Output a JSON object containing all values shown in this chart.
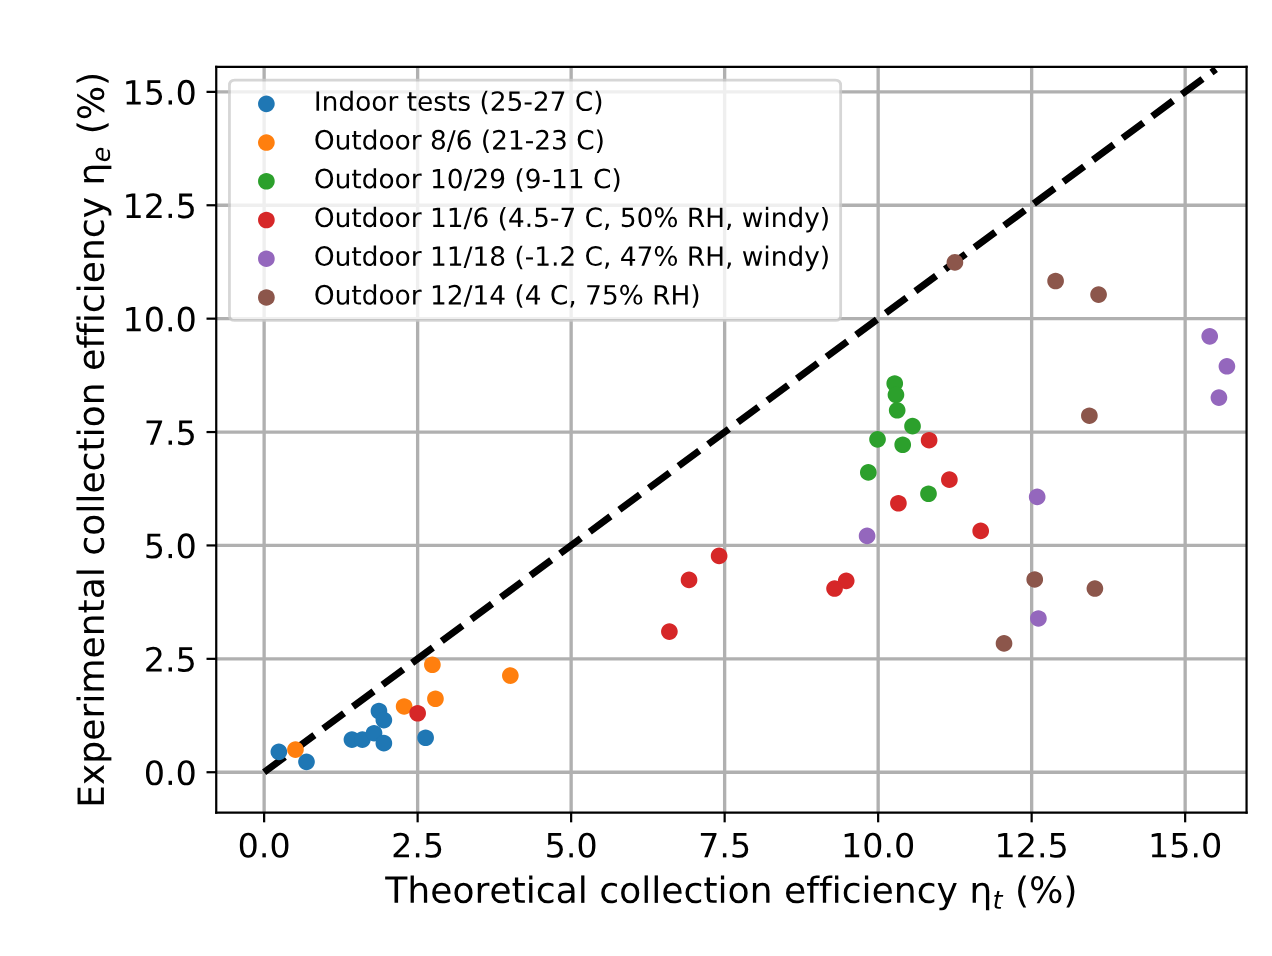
{
  "chart_data": {
    "type": "scatter",
    "xlabel": "Theoretical collection efficiency η$_{t}$ (%)",
    "ylabel": "Experimental collection efficiency η$_{e}$ (%)",
    "xlim": [
      -0.78,
      16.0
    ],
    "ylim": [
      -0.89,
      15.55
    ],
    "xticks": [
      {
        "value": 0,
        "label": "0.0"
      },
      {
        "value": 2.5,
        "label": "2.5"
      },
      {
        "value": 5,
        "label": "5.0"
      },
      {
        "value": 7.5,
        "label": "7.5"
      },
      {
        "value": 10,
        "label": "10.0"
      },
      {
        "value": 12.5,
        "label": "12.5"
      },
      {
        "value": 15,
        "label": "15.0"
      }
    ],
    "yticks": [
      {
        "value": 0,
        "label": "0.0"
      },
      {
        "value": 2.5,
        "label": "2.5"
      },
      {
        "value": 5,
        "label": "5.0"
      },
      {
        "value": 7.5,
        "label": "7.5"
      },
      {
        "value": 10,
        "label": "10.0"
      },
      {
        "value": 12.5,
        "label": "12.5"
      },
      {
        "value": 15,
        "label": "15.0"
      }
    ],
    "grid": true,
    "legend": "top left",
    "marker": "circle",
    "series": [
      {
        "name": "Indoor tests (25-27 C)",
        "color": "#1f77b4",
        "x": [
          0.24,
          0.69,
          1.43,
          1.6,
          1.79,
          1.87,
          1.95,
          1.95,
          2.63
        ],
        "values": [
          0.45,
          0.23,
          0.72,
          0.72,
          0.86,
          1.35,
          1.15,
          0.64,
          0.76
        ]
      },
      {
        "name": "Outdoor 8/6 (21-23 C)",
        "color": "#ff7f0e",
        "x": [
          0.51,
          2.28,
          2.74,
          2.79,
          4.01
        ],
        "values": [
          0.5,
          1.45,
          2.37,
          1.62,
          2.13
        ]
      },
      {
        "name": "Outdoor 10/29 (9-11 C)",
        "color": "#2ca02c",
        "x": [
          10.27,
          10.29,
          10.31,
          10.56,
          9.99,
          10.4,
          9.84,
          10.82
        ],
        "values": [
          8.57,
          8.32,
          7.98,
          7.63,
          7.34,
          7.22,
          6.61,
          6.14
        ]
      },
      {
        "name": "Outdoor 11/6 (4.5-7 C, 50% RH, windy)",
        "color": "#d62728",
        "x": [
          2.5,
          10.83,
          11.16,
          10.33,
          11.67,
          7.41,
          6.92,
          9.48,
          9.29,
          6.6
        ],
        "values": [
          1.3,
          7.32,
          6.45,
          5.93,
          5.32,
          4.77,
          4.24,
          4.22,
          4.05,
          3.1
        ]
      },
      {
        "name": "Outdoor 11/18 (-1.2 C, 47% RH, windy)",
        "color": "#9467bd",
        "x": [
          9.82,
          15.4,
          15.68,
          15.55,
          12.59,
          12.61
        ],
        "values": [
          5.21,
          9.61,
          8.95,
          8.26,
          6.07,
          3.39
        ]
      },
      {
        "name": "Outdoor 12/14 (4 C, 75% RH)",
        "color": "#8c564b",
        "x": [
          11.25,
          12.89,
          13.59,
          13.44,
          12.55,
          13.53,
          12.05
        ],
        "values": [
          11.24,
          10.83,
          10.53,
          7.86,
          4.25,
          4.05,
          2.84
        ]
      },
      {
        "type": "line",
        "color": "#000000",
        "line_style": "dashed",
        "marker": "none",
        "x": [
          0,
          15.5
        ],
        "values": [
          0,
          15.5
        ]
      }
    ]
  }
}
